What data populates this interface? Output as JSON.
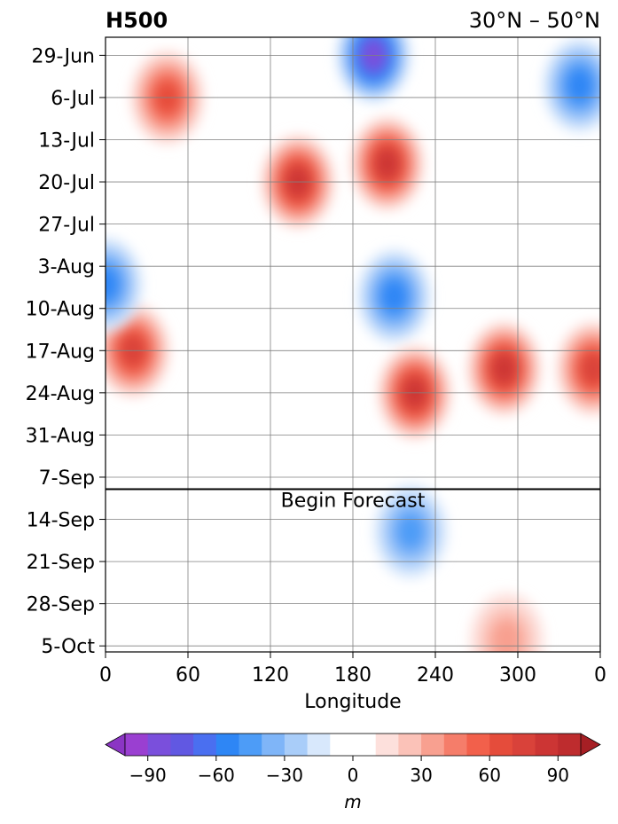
{
  "chart_data": {
    "type": "heatmap",
    "title_left": "H500",
    "title_right": "30°N – 50°N",
    "xlabel": "Longitude",
    "ylabel": "",
    "x_ticks": [
      "0",
      "60",
      "120",
      "180",
      "240",
      "300",
      "0"
    ],
    "x_tick_values": [
      0,
      60,
      120,
      180,
      240,
      300,
      360
    ],
    "xlim": [
      0,
      360
    ],
    "y_ticks": [
      "29-Jun",
      "6-Jul",
      "13-Jul",
      "20-Jul",
      "27-Jul",
      "3-Aug",
      "10-Aug",
      "17-Aug",
      "24-Aug",
      "31-Aug",
      "7-Sep",
      "14-Sep",
      "21-Sep",
      "28-Sep",
      "5-Oct"
    ],
    "ylim": [
      "26-Jun",
      "6-Oct"
    ],
    "y_inverted": true,
    "grid": true,
    "forecast_line": {
      "date": "9-Sep",
      "label": "Begin Forecast"
    },
    "colorbar": {
      "label": "m",
      "ticks": [
        "−90",
        "−60",
        "−30",
        "0",
        "30",
        "60",
        "90"
      ],
      "tick_values": [
        -90,
        -60,
        -30,
        0,
        30,
        60,
        90
      ],
      "levels": [
        -100,
        -90,
        -80,
        -70,
        -60,
        -50,
        -40,
        -30,
        -20,
        -10,
        10,
        20,
        30,
        40,
        50,
        60,
        70,
        80,
        90,
        100
      ],
      "colors": [
        "#9a3fd1",
        "#7a4fdc",
        "#6158e2",
        "#4a6ff0",
        "#2e86f5",
        "#4d9cf7",
        "#7fb5f8",
        "#a9cdf9",
        "#d8e8fc",
        "#ffffff",
        "#fde0dc",
        "#fbc2b8",
        "#f8a090",
        "#f57d6a",
        "#f2604b",
        "#e54c3b",
        "#d9423a",
        "#cc3534",
        "#be2c2e"
      ],
      "extend": "both",
      "under_color": "#8b35c4",
      "over_color": "#a61f24"
    },
    "features": [
      {
        "lon": 195,
        "date": "29-Jun",
        "value": -80
      },
      {
        "lon": 205,
        "date": "17-Jul",
        "value": 80
      },
      {
        "lon": 140,
        "date": "20-Jul",
        "value": 80
      },
      {
        "lon": 45,
        "date": "6-Jul",
        "value": 60
      },
      {
        "lon": 20,
        "date": "17-Aug",
        "value": 70
      },
      {
        "lon": 0,
        "date": "6-Aug",
        "value": -50
      },
      {
        "lon": 210,
        "date": "8-Aug",
        "value": -50
      },
      {
        "lon": 225,
        "date": "24-Aug",
        "value": 80
      },
      {
        "lon": 290,
        "date": "20-Aug",
        "value": 80
      },
      {
        "lon": 355,
        "date": "20-Aug",
        "value": 70
      },
      {
        "lon": 345,
        "date": "4-Jul",
        "value": -50
      },
      {
        "lon": 222,
        "date": "16-Sep",
        "value": -40
      },
      {
        "lon": 292,
        "date": "4-Oct",
        "value": 30
      }
    ]
  }
}
